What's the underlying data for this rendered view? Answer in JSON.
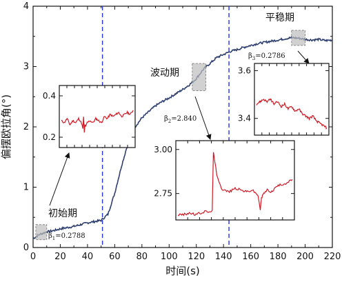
{
  "chart_data": {
    "type": "line",
    "xlabel": "时间(s)",
    "ylabel": "偏摆欧拉角(°)",
    "xlim": [
      0,
      220
    ],
    "ylim": [
      0,
      4
    ],
    "xticks": [
      "0",
      "20",
      "40",
      "60",
      "80",
      "100",
      "120",
      "140",
      "160",
      "180",
      "200",
      "220"
    ],
    "yticks": [
      "0",
      "1",
      "2",
      "3",
      "4"
    ],
    "grid": false,
    "series": [
      {
        "color": "#2e3f6e",
        "x": [
          0,
          5,
          10,
          15,
          20,
          25,
          30,
          35,
          40,
          45,
          50,
          55,
          60,
          65,
          70,
          75,
          80,
          85,
          90,
          95,
          100,
          105,
          110,
          115,
          120,
          125,
          130,
          135,
          140,
          145,
          150,
          155,
          160,
          165,
          170,
          175,
          180,
          185,
          190,
          195,
          200,
          205,
          210,
          215,
          220
        ],
        "y": [
          0.15,
          0.22,
          0.26,
          0.28,
          0.31,
          0.33,
          0.35,
          0.38,
          0.41,
          0.43,
          0.45,
          0.55,
          0.9,
          1.35,
          1.75,
          2.0,
          2.15,
          2.25,
          2.35,
          2.42,
          2.48,
          2.55,
          2.62,
          2.7,
          2.8,
          2.95,
          3.05,
          3.15,
          3.2,
          3.25,
          3.28,
          3.32,
          3.35,
          3.38,
          3.4,
          3.42,
          3.44,
          3.46,
          3.48,
          3.47,
          3.45,
          3.44,
          3.45,
          3.43,
          3.44
        ]
      }
    ],
    "vlines": [
      51,
      144
    ],
    "annotations": [
      {
        "text": "初始期",
        "beta": "β",
        "sub": "1",
        "value": "=0.2788",
        "box_x": [
          2,
          10
        ],
        "box_y": [
          0.13,
          0.38
        ]
      },
      {
        "text": "波动期",
        "beta": "β",
        "sub": "2",
        "value": "=2.840",
        "box_x": [
          117,
          127
        ],
        "box_y": [
          2.6,
          3.05
        ]
      },
      {
        "text": "平稳期",
        "beta": "β",
        "sub": "3",
        "value": "=0.2786",
        "box_x": [
          190,
          200
        ],
        "box_y": [
          3.35,
          3.6
        ]
      }
    ],
    "insets": [
      {
        "yticks": [
          "0.4",
          "0.2"
        ],
        "ylim": [
          0.15,
          0.45
        ],
        "x": [
          0,
          4,
          8,
          12,
          16,
          20,
          24,
          28,
          30,
          31,
          32,
          33,
          34,
          36,
          40,
          44,
          48,
          52,
          56,
          60,
          64,
          68,
          72,
          76,
          80,
          84,
          88,
          92,
          96,
          100
        ],
        "y": [
          0.28,
          0.27,
          0.29,
          0.26,
          0.28,
          0.27,
          0.29,
          0.27,
          0.24,
          0.3,
          0.22,
          0.26,
          0.25,
          0.27,
          0.28,
          0.27,
          0.29,
          0.28,
          0.27,
          0.3,
          0.29,
          0.31,
          0.3,
          0.31,
          0.32,
          0.3,
          0.31,
          0.32,
          0.31,
          0.33
        ]
      },
      {
        "yticks": [
          "3.00",
          "2.75"
        ],
        "ylim": [
          2.6,
          3.05
        ],
        "x": [
          0,
          5,
          10,
          15,
          20,
          25,
          28,
          30,
          31,
          32,
          33,
          34,
          36,
          38,
          40,
          45,
          50,
          55,
          60,
          65,
          70,
          72,
          73,
          74,
          75,
          78,
          82,
          86,
          90,
          95,
          100
        ],
        "y": [
          2.63,
          2.63,
          2.64,
          2.63,
          2.64,
          2.65,
          2.64,
          2.66,
          2.98,
          2.94,
          2.9,
          2.86,
          2.82,
          2.78,
          2.77,
          2.76,
          2.78,
          2.77,
          2.76,
          2.77,
          2.74,
          2.66,
          2.72,
          2.74,
          2.75,
          2.77,
          2.76,
          2.79,
          2.8,
          2.81,
          2.83
        ]
      },
      {
        "yticks": [
          "3.6",
          "3.4"
        ],
        "ylim": [
          3.33,
          3.63
        ],
        "x": [
          0,
          5,
          10,
          15,
          20,
          25,
          30,
          35,
          40,
          45,
          50,
          55,
          60,
          65,
          70,
          75,
          80,
          85,
          90,
          95,
          100
        ],
        "y": [
          3.46,
          3.47,
          3.48,
          3.47,
          3.48,
          3.46,
          3.47,
          3.45,
          3.46,
          3.44,
          3.45,
          3.43,
          3.44,
          3.42,
          3.41,
          3.4,
          3.41,
          3.39,
          3.38,
          3.37,
          3.36
        ]
      }
    ]
  }
}
